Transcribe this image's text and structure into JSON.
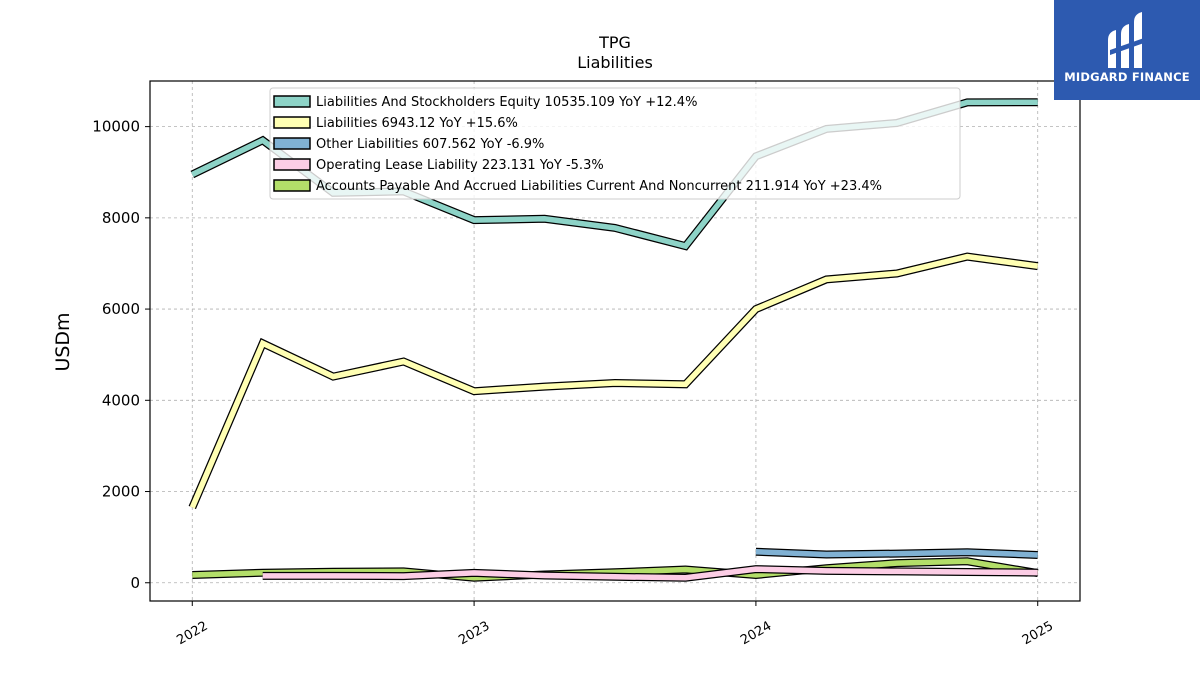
{
  "brand": {
    "name": "MIDGARD FINANCE",
    "color": "#2d5ab0"
  },
  "chart_data": {
    "type": "line",
    "title": "TPG",
    "subtitle": "Liabilities",
    "ylabel": "USDm",
    "xlabel": "",
    "ylim": [
      -400,
      11000
    ],
    "xlim": [
      2021.85,
      2025.15
    ],
    "yticks": [
      0,
      2000,
      4000,
      6000,
      8000,
      10000
    ],
    "xticks": [
      "2022",
      "2023",
      "2024",
      "2025"
    ],
    "grid": true,
    "legend_position": "top-center",
    "series": [
      {
        "name": "Liabilities And Stockholders Equity",
        "legend": "Liabilities And Stockholders Equity  10535.109 YoY +12.4%",
        "color": "#8dd3c7",
        "x": [
          2022.0,
          2022.25,
          2022.5,
          2022.75,
          2023.0,
          2023.25,
          2023.5,
          2023.75,
          2024.0,
          2024.25,
          2024.5,
          2024.75,
          2025.0
        ],
        "y": [
          8950,
          9700,
          8550,
          8580,
          7950,
          7980,
          7780,
          7380,
          9350,
          9950,
          10080,
          10530,
          10535
        ]
      },
      {
        "name": "Liabilities",
        "legend": "Liabilities  6943.12 YoY +15.6%",
        "color": "#ffffb3",
        "x": [
          2022.0,
          2022.25,
          2022.5,
          2022.75,
          2023.0,
          2023.25,
          2023.5,
          2023.75,
          2024.0,
          2024.25,
          2024.5,
          2024.75,
          2025.0
        ],
        "y": [
          1650,
          5250,
          4520,
          4850,
          4200,
          4300,
          4380,
          4350,
          6000,
          6650,
          6780,
          7150,
          6943
        ]
      },
      {
        "name": "Other Liabilities",
        "legend": "Other Liabilities  607.562 YoY -6.9%",
        "color": "#80b1d3",
        "x": [
          2024.0,
          2024.25,
          2024.5,
          2024.75,
          2025.0
        ],
        "y": [
          680,
          620,
          640,
          670,
          608
        ]
      },
      {
        "name": "Operating Lease Liability",
        "legend": "Operating Lease Liability  223.131 YoY -5.3%",
        "color": "#fccde5",
        "x": [
          2022.25,
          2022.5,
          2022.75,
          2023.0,
          2023.25,
          2023.5,
          2023.75,
          2024.0,
          2024.25,
          2024.5,
          2024.75,
          2025.0
        ],
        "y": [
          150,
          150,
          145,
          215,
          160,
          130,
          110,
          300,
          260,
          250,
          235,
          223
        ]
      },
      {
        "name": "Accounts Payable And Accrued Liabilities Current And Noncurrent",
        "legend": "Accounts Payable And Accrued Liabilities Current And Noncurrent  211.914 YoY +23.4%",
        "color": "#b3de69",
        "x": [
          2022.0,
          2022.25,
          2022.5,
          2022.75,
          2023.0,
          2023.25,
          2023.5,
          2023.75,
          2024.0,
          2024.25,
          2024.5,
          2024.75,
          2025.0
        ],
        "y": [
          170,
          220,
          240,
          250,
          110,
          180,
          230,
          290,
          170,
          320,
          430,
          470,
          212
        ]
      }
    ]
  }
}
